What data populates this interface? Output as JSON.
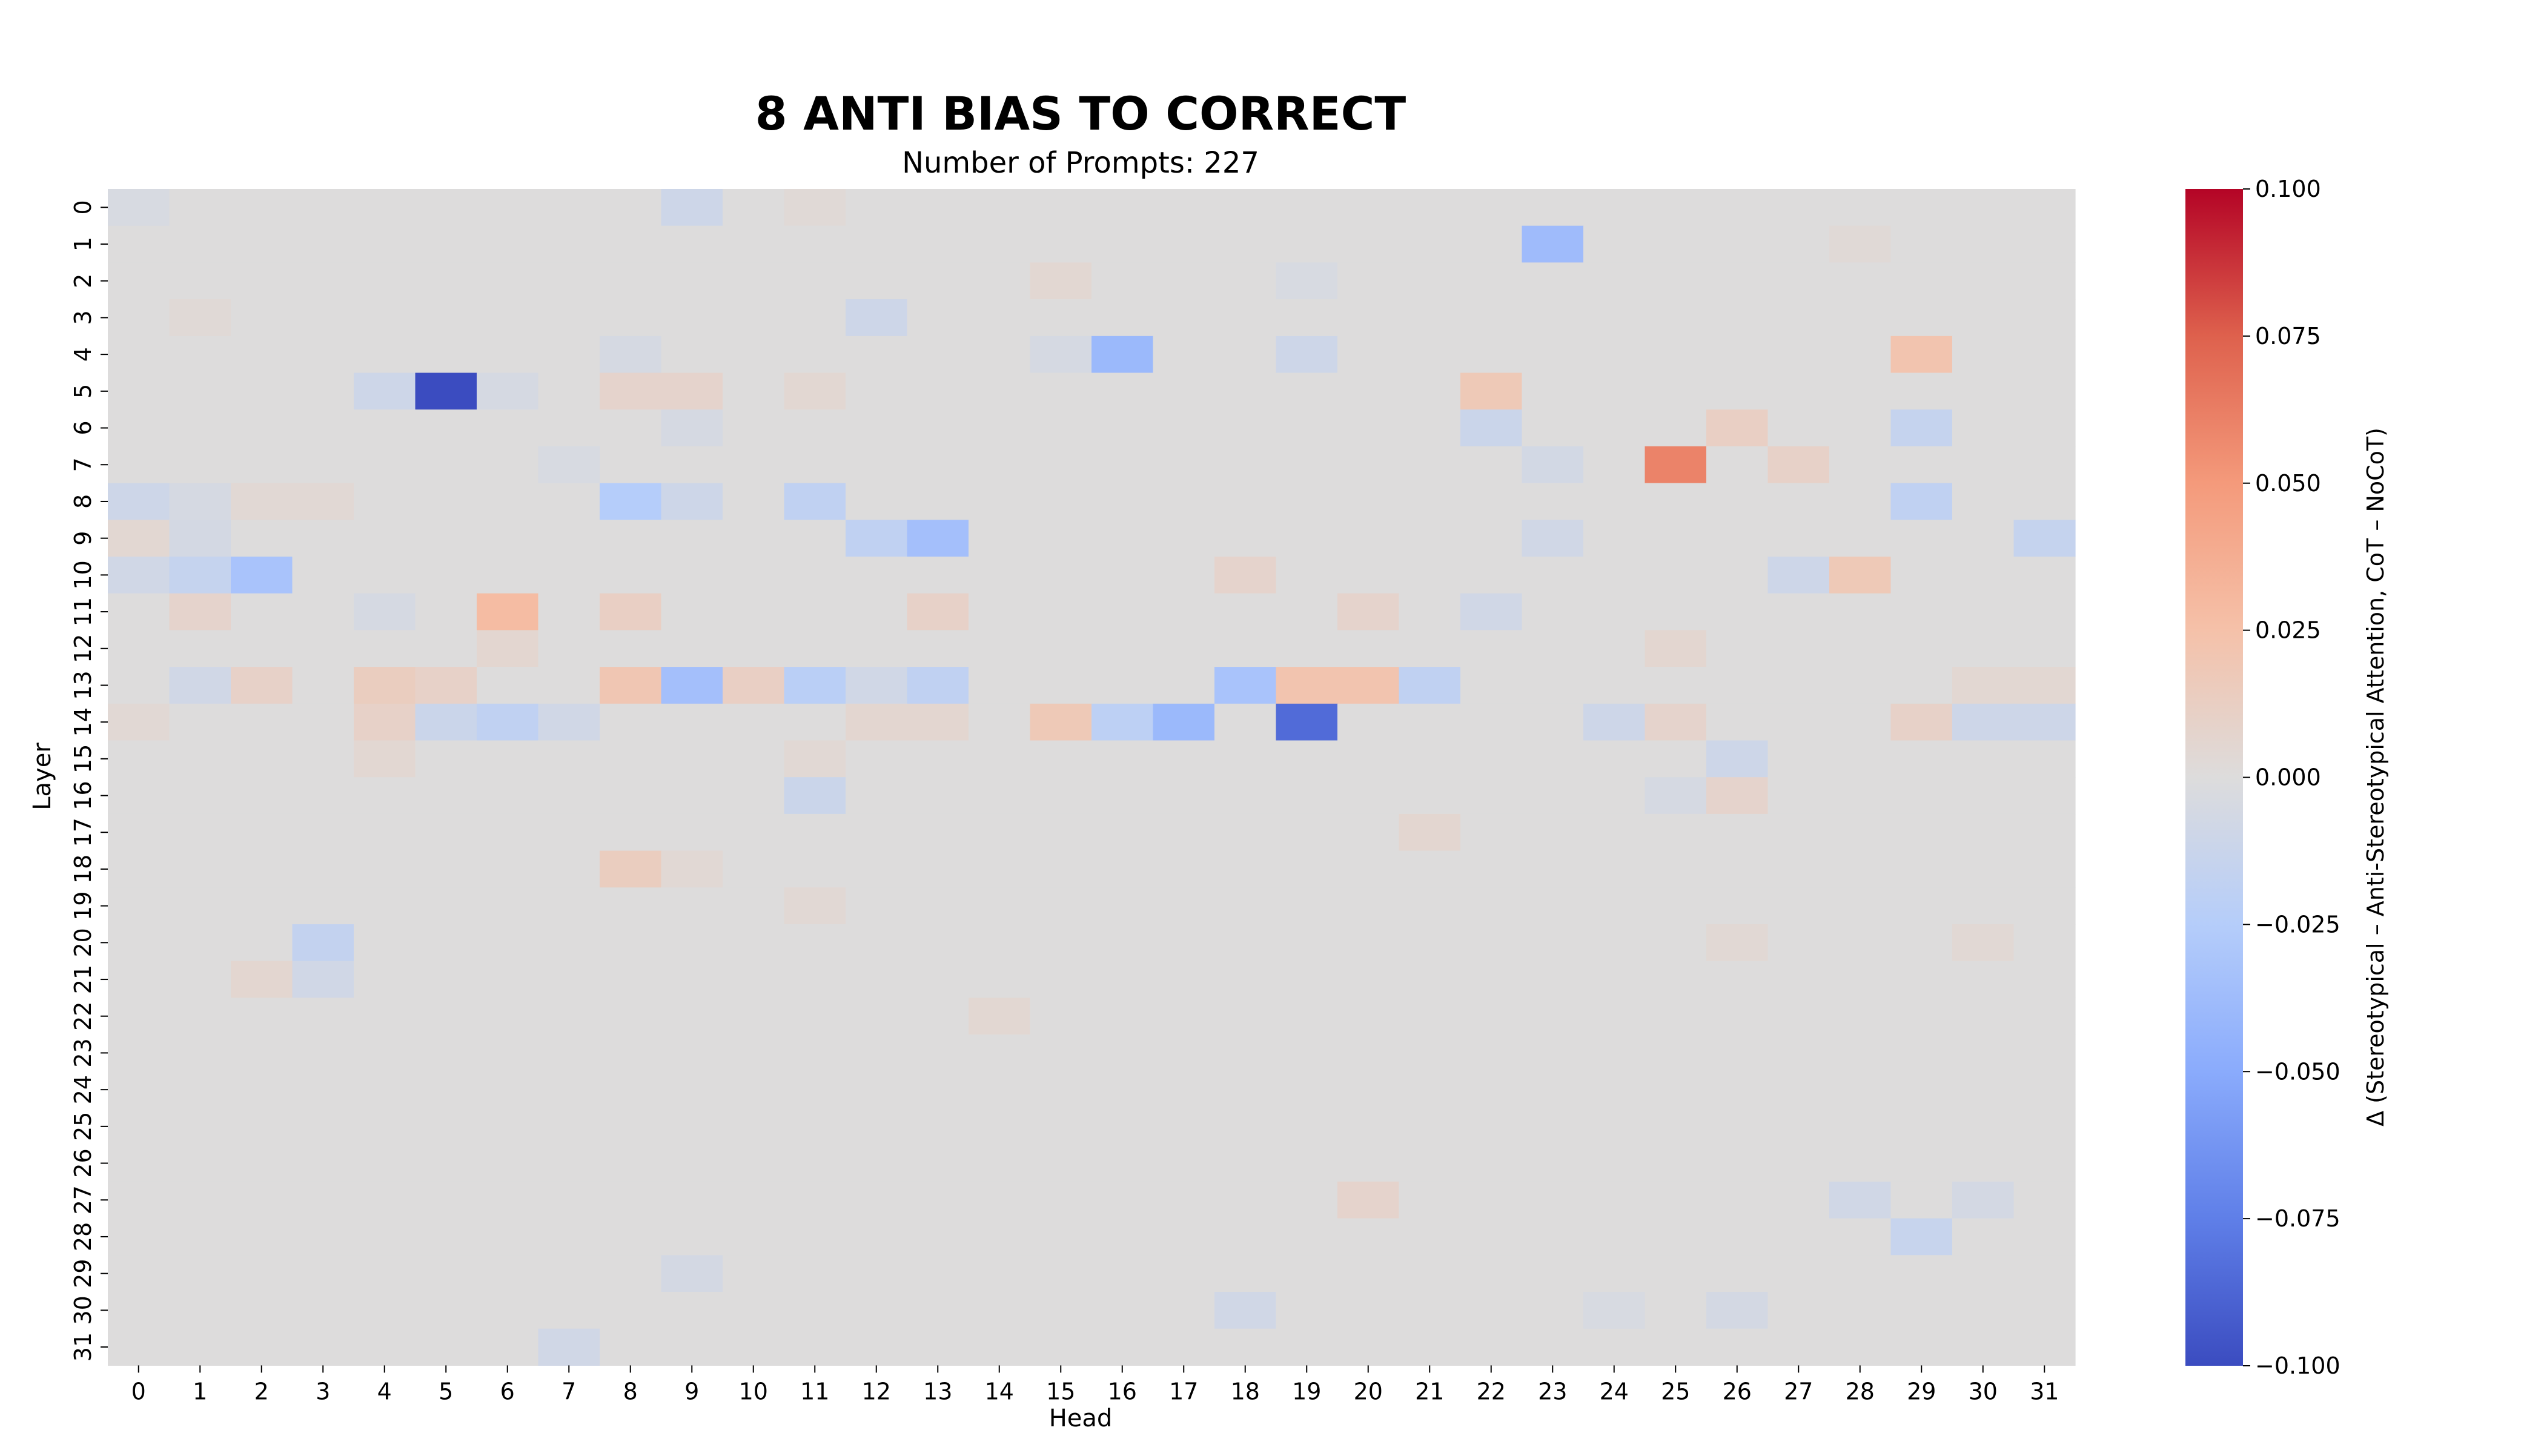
{
  "chart_data": {
    "type": "heatmap",
    "title": "8 ANTI BIAS TO CORRECT",
    "subtitle": "Number of Prompts: 227",
    "xlabel": "Head",
    "ylabel": "Layer",
    "x_categories": [
      "0",
      "1",
      "2",
      "3",
      "4",
      "5",
      "6",
      "7",
      "8",
      "9",
      "10",
      "11",
      "12",
      "13",
      "14",
      "15",
      "16",
      "17",
      "18",
      "19",
      "20",
      "21",
      "22",
      "23",
      "24",
      "25",
      "26",
      "27",
      "28",
      "29",
      "30",
      "31"
    ],
    "y_categories": [
      "0",
      "1",
      "2",
      "3",
      "4",
      "5",
      "6",
      "7",
      "8",
      "9",
      "10",
      "11",
      "12",
      "13",
      "14",
      "15",
      "16",
      "17",
      "18",
      "19",
      "20",
      "21",
      "22",
      "23",
      "24",
      "25",
      "26",
      "27",
      "28",
      "29",
      "30",
      "31"
    ],
    "colorbar": {
      "label": "Δ (Stereotypical – Anti-Stereotypical Attention, CoT – NoCoT)",
      "range": [
        -0.1,
        0.1
      ],
      "colormap": "coolwarm",
      "ticks": [
        "0.100",
        "0.075",
        "0.050",
        "0.025",
        "0.000",
        "−0.025",
        "−0.050",
        "−0.075",
        "−0.100"
      ]
    },
    "background_value": 0.0,
    "cells": [
      {
        "layer": 0,
        "head": 9,
        "value": -0.01
      },
      {
        "layer": 0,
        "head": 0,
        "value": -0.004
      },
      {
        "layer": 0,
        "head": 11,
        "value": 0.003
      },
      {
        "layer": 1,
        "head": 23,
        "value": -0.038
      },
      {
        "layer": 1,
        "head": 28,
        "value": 0.003
      },
      {
        "layer": 2,
        "head": 15,
        "value": 0.005
      },
      {
        "layer": 2,
        "head": 19,
        "value": -0.004
      },
      {
        "layer": 3,
        "head": 12,
        "value": -0.01
      },
      {
        "layer": 3,
        "head": 1,
        "value": 0.003
      },
      {
        "layer": 4,
        "head": 16,
        "value": -0.04
      },
      {
        "layer": 4,
        "head": 29,
        "value": 0.022
      },
      {
        "layer": 4,
        "head": 19,
        "value": -0.01
      },
      {
        "layer": 4,
        "head": 8,
        "value": -0.005
      },
      {
        "layer": 4,
        "head": 15,
        "value": -0.005
      },
      {
        "layer": 5,
        "head": 5,
        "value": -0.1
      },
      {
        "layer": 5,
        "head": 4,
        "value": -0.01
      },
      {
        "layer": 5,
        "head": 6,
        "value": -0.005
      },
      {
        "layer": 5,
        "head": 8,
        "value": 0.008
      },
      {
        "layer": 5,
        "head": 9,
        "value": 0.008
      },
      {
        "layer": 5,
        "head": 11,
        "value": 0.005
      },
      {
        "layer": 5,
        "head": 22,
        "value": 0.018
      },
      {
        "layer": 6,
        "head": 9,
        "value": -0.005
      },
      {
        "layer": 6,
        "head": 22,
        "value": -0.012
      },
      {
        "layer": 6,
        "head": 26,
        "value": 0.012
      },
      {
        "layer": 6,
        "head": 29,
        "value": -0.015
      },
      {
        "layer": 7,
        "head": 25,
        "value": 0.06
      },
      {
        "layer": 7,
        "head": 27,
        "value": 0.01
      },
      {
        "layer": 7,
        "head": 23,
        "value": -0.007
      },
      {
        "layer": 7,
        "head": 7,
        "value": -0.004
      },
      {
        "layer": 8,
        "head": 8,
        "value": -0.025
      },
      {
        "layer": 8,
        "head": 9,
        "value": -0.01
      },
      {
        "layer": 8,
        "head": 11,
        "value": -0.018
      },
      {
        "layer": 8,
        "head": 0,
        "value": -0.01
      },
      {
        "layer": 8,
        "head": 1,
        "value": -0.005
      },
      {
        "layer": 8,
        "head": 29,
        "value": -0.018
      },
      {
        "layer": 8,
        "head": 2,
        "value": 0.004
      },
      {
        "layer": 8,
        "head": 3,
        "value": 0.004
      },
      {
        "layer": 9,
        "head": 13,
        "value": -0.035
      },
      {
        "layer": 9,
        "head": 12,
        "value": -0.018
      },
      {
        "layer": 9,
        "head": 31,
        "value": -0.015
      },
      {
        "layer": 9,
        "head": 0,
        "value": 0.005
      },
      {
        "layer": 9,
        "head": 1,
        "value": -0.006
      },
      {
        "layer": 9,
        "head": 23,
        "value": -0.008
      },
      {
        "layer": 10,
        "head": 2,
        "value": -0.032
      },
      {
        "layer": 10,
        "head": 1,
        "value": -0.015
      },
      {
        "layer": 10,
        "head": 0,
        "value": -0.008
      },
      {
        "layer": 10,
        "head": 28,
        "value": 0.018
      },
      {
        "layer": 10,
        "head": 27,
        "value": -0.01
      },
      {
        "layer": 10,
        "head": 18,
        "value": 0.008
      },
      {
        "layer": 11,
        "head": 6,
        "value": 0.028
      },
      {
        "layer": 11,
        "head": 1,
        "value": 0.008
      },
      {
        "layer": 11,
        "head": 8,
        "value": 0.012
      },
      {
        "layer": 11,
        "head": 13,
        "value": 0.01
      },
      {
        "layer": 11,
        "head": 20,
        "value": 0.008
      },
      {
        "layer": 11,
        "head": 22,
        "value": -0.008
      },
      {
        "layer": 11,
        "head": 4,
        "value": -0.005
      },
      {
        "layer": 12,
        "head": 6,
        "value": 0.006
      },
      {
        "layer": 12,
        "head": 25,
        "value": 0.006
      },
      {
        "layer": 13,
        "head": 9,
        "value": -0.035
      },
      {
        "layer": 13,
        "head": 18,
        "value": -0.032
      },
      {
        "layer": 13,
        "head": 8,
        "value": 0.02
      },
      {
        "layer": 13,
        "head": 19,
        "value": 0.022
      },
      {
        "layer": 13,
        "head": 20,
        "value": 0.022
      },
      {
        "layer": 13,
        "head": 11,
        "value": -0.022
      },
      {
        "layer": 13,
        "head": 13,
        "value": -0.018
      },
      {
        "layer": 13,
        "head": 21,
        "value": -0.018
      },
      {
        "layer": 13,
        "head": 4,
        "value": 0.014
      },
      {
        "layer": 13,
        "head": 10,
        "value": 0.012
      },
      {
        "layer": 13,
        "head": 2,
        "value": 0.01
      },
      {
        "layer": 13,
        "head": 5,
        "value": 0.01
      },
      {
        "layer": 13,
        "head": 1,
        "value": -0.008
      },
      {
        "layer": 13,
        "head": 12,
        "value": -0.008
      },
      {
        "layer": 13,
        "head": 30,
        "value": 0.005
      },
      {
        "layer": 13,
        "head": 31,
        "value": 0.005
      },
      {
        "layer": 14,
        "head": 19,
        "value": -0.085
      },
      {
        "layer": 14,
        "head": 17,
        "value": -0.04
      },
      {
        "layer": 14,
        "head": 16,
        "value": -0.02
      },
      {
        "layer": 14,
        "head": 6,
        "value": -0.018
      },
      {
        "layer": 14,
        "head": 15,
        "value": 0.018
      },
      {
        "layer": 14,
        "head": 5,
        "value": -0.012
      },
      {
        "layer": 14,
        "head": 7,
        "value": -0.008
      },
      {
        "layer": 14,
        "head": 24,
        "value": -0.01
      },
      {
        "layer": 14,
        "head": 30,
        "value": -0.01
      },
      {
        "layer": 14,
        "head": 31,
        "value": -0.01
      },
      {
        "layer": 14,
        "head": 4,
        "value": 0.01
      },
      {
        "layer": 14,
        "head": 29,
        "value": 0.01
      },
      {
        "layer": 14,
        "head": 12,
        "value": 0.006
      },
      {
        "layer": 14,
        "head": 13,
        "value": 0.006
      },
      {
        "layer": 14,
        "head": 25,
        "value": 0.008
      },
      {
        "layer": 14,
        "head": 0,
        "value": 0.004
      },
      {
        "layer": 15,
        "head": 26,
        "value": -0.01
      },
      {
        "layer": 15,
        "head": 4,
        "value": 0.005
      },
      {
        "layer": 15,
        "head": 11,
        "value": 0.004
      },
      {
        "layer": 16,
        "head": 11,
        "value": -0.012
      },
      {
        "layer": 16,
        "head": 26,
        "value": 0.008
      },
      {
        "layer": 16,
        "head": 25,
        "value": -0.005
      },
      {
        "layer": 17,
        "head": 21,
        "value": 0.006
      },
      {
        "layer": 18,
        "head": 8,
        "value": 0.014
      },
      {
        "layer": 18,
        "head": 9,
        "value": 0.004
      },
      {
        "layer": 19,
        "head": 11,
        "value": 0.004
      },
      {
        "layer": 20,
        "head": 3,
        "value": -0.016
      },
      {
        "layer": 20,
        "head": 26,
        "value": 0.004
      },
      {
        "layer": 20,
        "head": 30,
        "value": 0.004
      },
      {
        "layer": 21,
        "head": 3,
        "value": -0.008
      },
      {
        "layer": 21,
        "head": 2,
        "value": 0.006
      },
      {
        "layer": 22,
        "head": 14,
        "value": 0.005
      },
      {
        "layer": 27,
        "head": 20,
        "value": 0.008
      },
      {
        "layer": 27,
        "head": 28,
        "value": -0.008
      },
      {
        "layer": 27,
        "head": 30,
        "value": -0.006
      },
      {
        "layer": 28,
        "head": 29,
        "value": -0.014
      },
      {
        "layer": 29,
        "head": 9,
        "value": -0.006
      },
      {
        "layer": 30,
        "head": 18,
        "value": -0.008
      },
      {
        "layer": 30,
        "head": 26,
        "value": -0.006
      },
      {
        "layer": 30,
        "head": 24,
        "value": -0.004
      },
      {
        "layer": 31,
        "head": 7,
        "value": -0.008
      }
    ]
  }
}
